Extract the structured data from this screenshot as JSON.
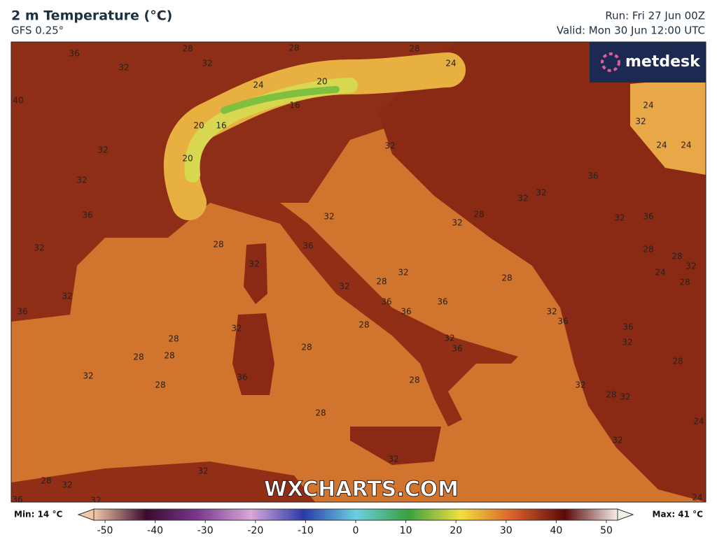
{
  "header": {
    "title": "2 m Temperature (°C)",
    "subtitle": "GFS 0.25°",
    "run": "Run: Fri 27 Jun 00Z",
    "valid": "Valid: Mon 30 Jun 12:00 UTC"
  },
  "logo": "metdesk",
  "watermark": "WXCHARTS.COM",
  "colorbar": {
    "min_label": "Min: 14 °C",
    "max_label": "Max: 41 °C",
    "ticks": [
      -50,
      -40,
      -30,
      -20,
      -10,
      0,
      10,
      20,
      30,
      40,
      50
    ]
  },
  "contour_labels": [
    "36",
    "32",
    "28",
    "32",
    "28",
    "28",
    "24",
    "24",
    "20",
    "16",
    "20",
    "16",
    "40",
    "32",
    "32",
    "20",
    "36",
    "32",
    "32",
    "36",
    "28",
    "32",
    "36",
    "32",
    "32",
    "32",
    "36",
    "36",
    "36",
    "32",
    "28",
    "28",
    "32",
    "28",
    "28",
    "28",
    "28",
    "32",
    "28",
    "36",
    "32",
    "36",
    "28",
    "28",
    "32",
    "28",
    "32",
    "32",
    "32",
    "36",
    "24",
    "32",
    "24",
    "24",
    "32",
    "36",
    "28",
    "28",
    "32",
    "24",
    "28",
    "28",
    "32",
    "36",
    "36",
    "32",
    "28",
    "32",
    "28",
    "32",
    "32",
    "24",
    "24",
    "32",
    "28",
    "32",
    "36",
    "32"
  ]
}
